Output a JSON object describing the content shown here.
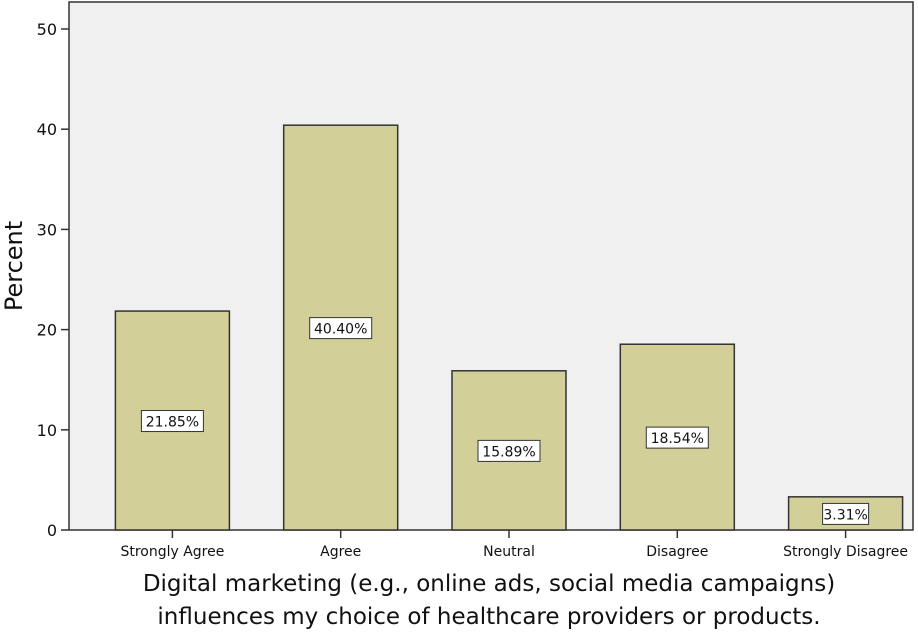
{
  "chart_data": {
    "type": "bar",
    "title": "",
    "xlabel_lines": [
      "Digital marketing (e.g., online ads, social media campaigns)",
      "influences my choice of healthcare providers or products."
    ],
    "ylabel": "Percent",
    "categories": [
      "Strongly Agree",
      "Agree",
      "Neutral",
      "Disagree",
      "Strongly Disagree"
    ],
    "values": [
      21.85,
      40.4,
      15.89,
      18.54,
      3.31
    ],
    "data_labels": [
      "21.85%",
      "40.40%",
      "15.89%",
      "18.54%",
      "3.31%"
    ],
    "ylim": [
      0,
      50
    ],
    "yticks": [
      0,
      10,
      20,
      30,
      40,
      50
    ],
    "grid": false,
    "colors": {
      "bar": "#d3cf98",
      "plot_bg": "#f0f0f0",
      "stroke": "#333333"
    }
  }
}
